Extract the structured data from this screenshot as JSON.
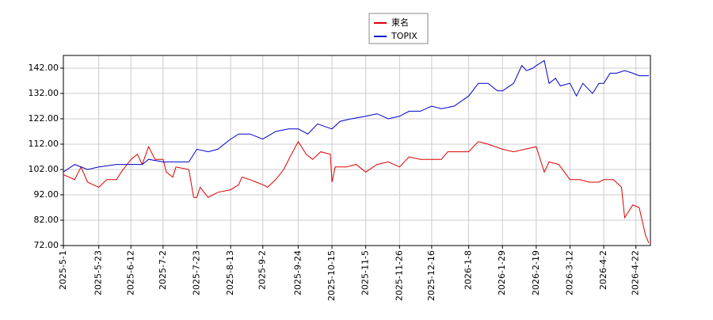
{
  "chart_data": {
    "type": "line",
    "grid": true,
    "legend": "top",
    "xlim": [
      "2025-5-1",
      "2026-5-1"
    ],
    "xticks": [
      "2025-5-1",
      "2025-5-23",
      "2025-6-12",
      "2025-7-2",
      "2025-7-23",
      "2025-8-13",
      "2025-9-2",
      "2025-9-24",
      "2025-10-15",
      "2025-11-5",
      "2025-11-26",
      "2025-12-16",
      "2026-1-8",
      "2026-1-29",
      "2026-2-19",
      "2026-3-12",
      "2026-4-2",
      "2026-4-22"
    ],
    "ylim": [
      72,
      147
    ],
    "yticks": [
      {
        "value": 72,
        "label": "72.00"
      },
      {
        "value": 82,
        "label": "82.00"
      },
      {
        "value": 92,
        "label": "92.00"
      },
      {
        "value": 102,
        "label": "102.00"
      },
      {
        "value": 112,
        "label": "112.00"
      },
      {
        "value": 122,
        "label": "122.00"
      },
      {
        "value": 132,
        "label": "132.00"
      },
      {
        "value": 142,
        "label": "142.00"
      }
    ],
    "series": [
      {
        "name": "東名",
        "color": "#dd0000",
        "x": [
          "2025-5-1",
          "2025-5-8",
          "2025-5-12",
          "2025-5-16",
          "2025-5-23",
          "2025-5-28",
          "2025-6-3",
          "2025-6-6",
          "2025-6-12",
          "2025-6-16",
          "2025-6-19",
          "2025-6-23",
          "2025-6-27",
          "2025-7-2",
          "2025-7-4",
          "2025-7-8",
          "2025-7-10",
          "2025-7-18",
          "2025-7-21",
          "2025-7-23",
          "2025-7-25",
          "2025-7-30",
          "2025-8-5",
          "2025-8-13",
          "2025-8-18",
          "2025-8-20",
          "2025-8-25",
          "2025-8-29",
          "2025-9-2",
          "2025-9-5",
          "2025-9-10",
          "2025-9-15",
          "2025-9-19",
          "2025-9-24",
          "2025-9-29",
          "2025-10-3",
          "2025-10-8",
          "2025-10-14",
          "2025-10-15",
          "2025-10-17",
          "2025-10-24",
          "2025-10-30",
          "2025-11-5",
          "2025-11-12",
          "2025-11-19",
          "2025-11-26",
          "2025-12-2",
          "2025-12-9",
          "2025-12-16",
          "2025-12-22",
          "2025-12-26",
          "2026-1-8",
          "2026-1-14",
          "2026-1-20",
          "2026-1-29",
          "2026-2-5",
          "2026-2-12",
          "2026-2-19",
          "2026-2-24",
          "2026-2-27",
          "2026-3-5",
          "2026-3-12",
          "2026-3-18",
          "2026-3-24",
          "2026-3-30",
          "2026-4-2",
          "2026-4-8",
          "2026-4-13",
          "2026-4-15",
          "2026-4-20",
          "2026-4-24",
          "2026-4-28",
          "2026-4-30"
        ],
        "values": [
          100,
          98,
          103,
          97,
          95,
          98,
          98,
          101,
          106,
          108,
          104,
          111,
          106,
          106,
          101,
          99,
          103,
          102,
          91,
          91,
          95,
          91,
          93,
          94,
          96,
          99,
          98,
          97,
          96,
          95,
          98,
          102,
          107,
          113,
          108,
          106,
          109,
          108,
          97,
          103,
          103,
          104,
          101,
          104,
          105,
          103,
          107,
          106,
          106,
          106,
          109,
          109,
          113,
          112,
          110,
          109,
          110,
          111,
          101,
          105,
          104,
          98,
          98,
          97,
          97,
          98,
          98,
          95,
          83,
          88,
          87,
          76,
          73
        ]
      },
      {
        "name": "TOPIX",
        "color": "#0000cc",
        "x": [
          "2025-5-1",
          "2025-5-8",
          "2025-5-16",
          "2025-5-23",
          "2025-6-3",
          "2025-6-12",
          "2025-6-19",
          "2025-6-23",
          "2025-7-2",
          "2025-7-10",
          "2025-7-18",
          "2025-7-23",
          "2025-7-30",
          "2025-8-5",
          "2025-8-13",
          "2025-8-18",
          "2025-8-25",
          "2025-9-2",
          "2025-9-10",
          "2025-9-18",
          "2025-9-24",
          "2025-9-30",
          "2025-10-6",
          "2025-10-15",
          "2025-10-20",
          "2025-10-27",
          "2025-11-5",
          "2025-11-12",
          "2025-11-19",
          "2025-11-26",
          "2025-12-2",
          "2025-12-9",
          "2025-12-16",
          "2025-12-22",
          "2025-12-30",
          "2026-1-8",
          "2026-1-14",
          "2026-1-20",
          "2026-1-26",
          "2026-1-29",
          "2026-2-5",
          "2026-2-10",
          "2026-2-13",
          "2026-2-17",
          "2026-2-19",
          "2026-2-24",
          "2026-2-27",
          "2026-3-3",
          "2026-3-6",
          "2026-3-12",
          "2026-3-16",
          "2026-3-20",
          "2026-3-26",
          "2026-3-30",
          "2026-4-2",
          "2026-4-6",
          "2026-4-10",
          "2026-4-15",
          "2026-4-20",
          "2026-4-24",
          "2026-4-30"
        ],
        "values": [
          101,
          104,
          102,
          103,
          104,
          104,
          104,
          106,
          105,
          105,
          105,
          110,
          109,
          110,
          114,
          116,
          116,
          114,
          117,
          118,
          118,
          116,
          120,
          118,
          121,
          122,
          123,
          124,
          122,
          123,
          125,
          125,
          127,
          126,
          127,
          131,
          136,
          136,
          133,
          133,
          136,
          143,
          141,
          142,
          143,
          145,
          136,
          138,
          135,
          136,
          131,
          136,
          132,
          136,
          136,
          140,
          140,
          141,
          140,
          139,
          139
        ]
      }
    ]
  }
}
